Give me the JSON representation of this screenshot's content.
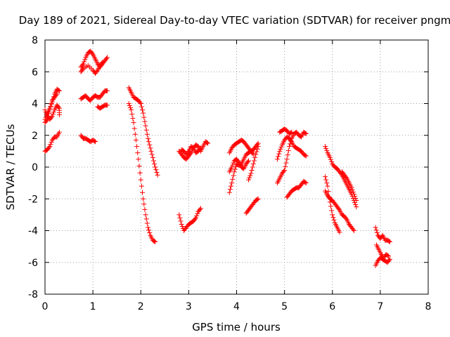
{
  "chart_data": {
    "type": "scatter",
    "title": "Day 189 of 2021, Sidereal Day-to-day VTEC variation (SDTVAR) for receiver pngm",
    "xlabel": "GPS time / hours",
    "ylabel": "SDTVAR / TECUs",
    "xlim": [
      0,
      8
    ],
    "ylim": [
      -8,
      8
    ],
    "xticks": [
      0,
      1,
      2,
      3,
      4,
      5,
      6,
      7,
      8
    ],
    "yticks": [
      -8,
      -6,
      -4,
      -2,
      0,
      2,
      4,
      6,
      8
    ],
    "xtick_labels": [
      "0",
      "1",
      "2",
      "3",
      "4",
      "5",
      "6",
      "7",
      "8"
    ],
    "ytick_labels": [
      "-8",
      "-6",
      "-4",
      "-2",
      "0",
      "2",
      "4",
      "6",
      "8"
    ],
    "grid": true,
    "marker": "+",
    "series_color": "#ff0000",
    "tracks": [
      [
        [
          0.0,
          3.0
        ],
        [
          0.05,
          3.4
        ],
        [
          0.1,
          3.7
        ],
        [
          0.15,
          4.1
        ],
        [
          0.2,
          4.6
        ],
        [
          0.25,
          4.9
        ],
        [
          0.3,
          4.8
        ]
      ],
      [
        [
          0.0,
          3.6
        ],
        [
          0.05,
          3.2
        ],
        [
          0.1,
          3.0
        ],
        [
          0.15,
          3.2
        ],
        [
          0.2,
          3.6
        ],
        [
          0.25,
          3.9
        ],
        [
          0.3,
          3.7
        ],
        [
          0.3,
          3.3
        ]
      ],
      [
        [
          0.0,
          1.0
        ],
        [
          0.05,
          1.1
        ],
        [
          0.1,
          1.3
        ],
        [
          0.15,
          1.7
        ],
        [
          0.2,
          1.9
        ],
        [
          0.25,
          1.9
        ],
        [
          0.3,
          2.2
        ]
      ],
      [
        [
          0.0,
          2.8
        ],
        [
          0.05,
          3.0
        ],
        [
          0.1,
          3.6
        ],
        [
          0.15,
          4.2
        ],
        [
          0.2,
          4.4
        ],
        [
          0.25,
          4.6
        ]
      ],
      [
        [
          0.75,
          6.3
        ],
        [
          0.8,
          6.5
        ],
        [
          0.85,
          6.9
        ],
        [
          0.9,
          7.2
        ],
        [
          0.95,
          7.3
        ],
        [
          1.0,
          7.1
        ],
        [
          1.05,
          6.8
        ],
        [
          1.1,
          6.5
        ],
        [
          1.15,
          6.3
        ],
        [
          1.2,
          6.5
        ],
        [
          1.25,
          6.7
        ],
        [
          1.3,
          6.9
        ]
      ],
      [
        [
          0.75,
          6.0
        ],
        [
          0.8,
          6.2
        ],
        [
          0.9,
          6.4
        ],
        [
          1.0,
          6.1
        ],
        [
          1.05,
          5.9
        ],
        [
          1.1,
          6.1
        ],
        [
          1.15,
          6.4
        ],
        [
          1.2,
          6.6
        ]
      ],
      [
        [
          0.75,
          4.3
        ],
        [
          0.8,
          4.4
        ],
        [
          0.85,
          4.5
        ],
        [
          0.9,
          4.3
        ],
        [
          0.95,
          4.2
        ],
        [
          1.0,
          4.4
        ],
        [
          1.05,
          4.5
        ],
        [
          1.1,
          4.4
        ],
        [
          1.15,
          4.4
        ],
        [
          1.2,
          4.6
        ],
        [
          1.25,
          4.8
        ],
        [
          1.3,
          4.8
        ]
      ],
      [
        [
          1.1,
          3.8
        ],
        [
          1.15,
          3.7
        ],
        [
          1.2,
          3.8
        ],
        [
          1.25,
          3.9
        ],
        [
          1.3,
          3.9
        ]
      ],
      [
        [
          0.75,
          2.0
        ],
        [
          0.8,
          1.8
        ],
        [
          0.85,
          1.8
        ],
        [
          0.9,
          1.7
        ],
        [
          0.95,
          1.6
        ],
        [
          1.0,
          1.7
        ],
        [
          1.05,
          1.6
        ]
      ],
      [
        [
          1.75,
          5.0
        ],
        [
          1.8,
          4.7
        ],
        [
          1.85,
          4.4
        ],
        [
          1.9,
          4.3
        ],
        [
          1.95,
          4.2
        ],
        [
          2.0,
          4.0
        ],
        [
          2.05,
          3.4
        ],
        [
          2.1,
          2.6
        ],
        [
          2.15,
          1.8
        ],
        [
          2.2,
          1.2
        ],
        [
          2.25,
          0.6
        ],
        [
          2.3,
          0.0
        ],
        [
          2.35,
          -0.5
        ]
      ],
      [
        [
          1.75,
          4.0
        ],
        [
          1.8,
          3.6
        ],
        [
          1.85,
          2.8
        ],
        [
          1.9,
          1.7
        ],
        [
          1.95,
          0.5
        ],
        [
          2.0,
          -0.8
        ],
        [
          2.05,
          -2.0
        ],
        [
          2.1,
          -3.0
        ],
        [
          2.15,
          -3.8
        ],
        [
          2.2,
          -4.3
        ],
        [
          2.25,
          -4.6
        ],
        [
          2.3,
          -4.7
        ]
      ],
      [
        [
          2.8,
          1.0
        ],
        [
          2.85,
          0.8
        ],
        [
          2.9,
          0.6
        ],
        [
          2.95,
          0.5
        ],
        [
          3.0,
          0.7
        ],
        [
          3.05,
          0.9
        ],
        [
          3.1,
          1.2
        ],
        [
          3.15,
          1.4
        ],
        [
          3.2,
          1.3
        ],
        [
          3.25,
          1.0
        ],
        [
          3.3,
          1.3
        ],
        [
          3.35,
          1.6
        ],
        [
          3.4,
          1.5
        ]
      ],
      [
        [
          2.85,
          1.1
        ],
        [
          2.9,
          1.0
        ],
        [
          2.95,
          0.8
        ],
        [
          3.0,
          1.0
        ],
        [
          3.05,
          1.3
        ],
        [
          3.1,
          1.2
        ],
        [
          3.15,
          0.9
        ],
        [
          3.2,
          1.0
        ],
        [
          3.25,
          1.2
        ]
      ],
      [
        [
          2.8,
          -3.0
        ],
        [
          2.85,
          -3.6
        ],
        [
          2.9,
          -4.0
        ],
        [
          2.95,
          -3.8
        ],
        [
          3.0,
          -3.6
        ],
        [
          3.05,
          -3.5
        ],
        [
          3.1,
          -3.4
        ],
        [
          3.15,
          -3.2
        ],
        [
          3.2,
          -2.8
        ],
        [
          3.25,
          -2.6
        ]
      ],
      [
        [
          3.85,
          -1.6
        ],
        [
          3.9,
          -1.0
        ],
        [
          3.95,
          -0.3
        ],
        [
          4.0,
          0.2
        ],
        [
          4.05,
          0.1
        ],
        [
          4.1,
          0.2
        ],
        [
          4.15,
          0.5
        ],
        [
          4.2,
          0.8
        ],
        [
          4.25,
          0.9
        ],
        [
          4.3,
          1.0
        ],
        [
          4.35,
          1.1
        ],
        [
          4.4,
          1.3
        ],
        [
          4.45,
          1.5
        ]
      ],
      [
        [
          3.85,
          0.9
        ],
        [
          3.9,
          1.2
        ],
        [
          3.95,
          1.4
        ],
        [
          4.0,
          1.5
        ],
        [
          4.05,
          1.6
        ],
        [
          4.1,
          1.7
        ],
        [
          4.15,
          1.6
        ],
        [
          4.2,
          1.4
        ],
        [
          4.25,
          1.2
        ],
        [
          4.3,
          1.0
        ],
        [
          4.35,
          0.8
        ]
      ],
      [
        [
          3.85,
          -0.3
        ],
        [
          3.9,
          0.0
        ],
        [
          3.95,
          0.4
        ],
        [
          4.0,
          0.5
        ],
        [
          4.05,
          0.3
        ],
        [
          4.1,
          0.0
        ],
        [
          4.15,
          -0.1
        ],
        [
          4.2,
          0.2
        ],
        [
          4.25,
          0.4
        ]
      ],
      [
        [
          4.2,
          -2.9
        ],
        [
          4.25,
          -2.7
        ],
        [
          4.3,
          -2.5
        ],
        [
          4.35,
          -2.3
        ],
        [
          4.4,
          -2.1
        ],
        [
          4.45,
          -2.0
        ]
      ],
      [
        [
          4.25,
          -0.8
        ],
        [
          4.3,
          -0.4
        ],
        [
          4.35,
          0.2
        ],
        [
          4.4,
          0.8
        ],
        [
          4.45,
          1.3
        ]
      ],
      [
        [
          4.85,
          -1.0
        ],
        [
          4.9,
          -0.7
        ],
        [
          4.95,
          -0.4
        ],
        [
          5.0,
          -0.2
        ],
        [
          5.05,
          0.5
        ],
        [
          5.1,
          1.3
        ],
        [
          5.15,
          1.8
        ],
        [
          5.2,
          2.1
        ],
        [
          5.25,
          2.2
        ],
        [
          5.3,
          2.0
        ],
        [
          5.35,
          1.9
        ],
        [
          5.4,
          2.2
        ],
        [
          5.45,
          2.1
        ]
      ],
      [
        [
          4.85,
          0.5
        ],
        [
          4.9,
          1.0
        ],
        [
          4.95,
          1.4
        ],
        [
          5.0,
          1.7
        ],
        [
          5.05,
          1.9
        ],
        [
          5.1,
          1.8
        ],
        [
          5.15,
          1.6
        ],
        [
          5.2,
          1.3
        ],
        [
          5.25,
          1.2
        ],
        [
          5.3,
          1.1
        ],
        [
          5.35,
          1.0
        ],
        [
          5.4,
          0.8
        ],
        [
          5.45,
          0.7
        ]
      ],
      [
        [
          4.9,
          2.2
        ],
        [
          4.95,
          2.3
        ],
        [
          5.0,
          2.4
        ],
        [
          5.05,
          2.3
        ],
        [
          5.1,
          2.1
        ],
        [
          5.15,
          2.2
        ]
      ],
      [
        [
          5.05,
          -1.9
        ],
        [
          5.1,
          -1.7
        ],
        [
          5.15,
          -1.5
        ],
        [
          5.2,
          -1.4
        ],
        [
          5.25,
          -1.3
        ],
        [
          5.3,
          -1.3
        ],
        [
          5.35,
          -1.1
        ],
        [
          5.4,
          -0.9
        ],
        [
          5.45,
          -1.0
        ]
      ],
      [
        [
          5.85,
          1.3
        ],
        [
          5.9,
          0.9
        ],
        [
          5.95,
          0.6
        ],
        [
          6.0,
          0.2
        ],
        [
          6.05,
          0.0
        ],
        [
          6.1,
          -0.1
        ],
        [
          6.15,
          -0.3
        ],
        [
          6.2,
          -0.5
        ],
        [
          6.25,
          -0.8
        ],
        [
          6.3,
          -1.1
        ],
        [
          6.35,
          -1.4
        ],
        [
          6.4,
          -1.7
        ],
        [
          6.45,
          -2.1
        ],
        [
          6.5,
          -2.5
        ]
      ],
      [
        [
          5.85,
          -1.5
        ],
        [
          5.9,
          -1.8
        ],
        [
          5.95,
          -2.0
        ],
        [
          6.0,
          -2.1
        ],
        [
          6.05,
          -2.3
        ],
        [
          6.1,
          -2.5
        ],
        [
          6.15,
          -2.7
        ],
        [
          6.2,
          -3.0
        ],
        [
          6.25,
          -3.1
        ],
        [
          6.3,
          -3.3
        ],
        [
          6.35,
          -3.6
        ],
        [
          6.4,
          -3.8
        ],
        [
          6.45,
          -4.0
        ]
      ],
      [
        [
          5.85,
          -0.6
        ],
        [
          5.9,
          -1.2
        ],
        [
          5.95,
          -2.2
        ],
        [
          6.0,
          -3.0
        ],
        [
          6.05,
          -3.5
        ],
        [
          6.1,
          -3.8
        ],
        [
          6.15,
          -4.1
        ]
      ],
      [
        [
          6.2,
          -0.3
        ],
        [
          6.25,
          -0.5
        ],
        [
          6.3,
          -0.7
        ],
        [
          6.35,
          -1.0
        ],
        [
          6.4,
          -1.3
        ],
        [
          6.45,
          -1.7
        ],
        [
          6.5,
          -2.1
        ]
      ],
      [
        [
          6.9,
          -3.8
        ],
        [
          6.95,
          -4.3
        ],
        [
          7.0,
          -4.5
        ],
        [
          7.05,
          -4.3
        ],
        [
          7.1,
          -4.6
        ],
        [
          7.15,
          -4.6
        ],
        [
          7.2,
          -4.7
        ]
      ],
      [
        [
          6.9,
          -6.2
        ],
        [
          6.95,
          -5.9
        ],
        [
          7.0,
          -5.7
        ],
        [
          7.05,
          -5.8
        ],
        [
          7.1,
          -5.9
        ],
        [
          7.15,
          -6.0
        ],
        [
          7.2,
          -5.8
        ]
      ],
      [
        [
          6.92,
          -4.9
        ],
        [
          6.97,
          -5.2
        ],
        [
          7.02,
          -5.5
        ],
        [
          7.07,
          -5.7
        ],
        [
          7.12,
          -5.5
        ],
        [
          7.17,
          -5.6
        ]
      ]
    ]
  }
}
